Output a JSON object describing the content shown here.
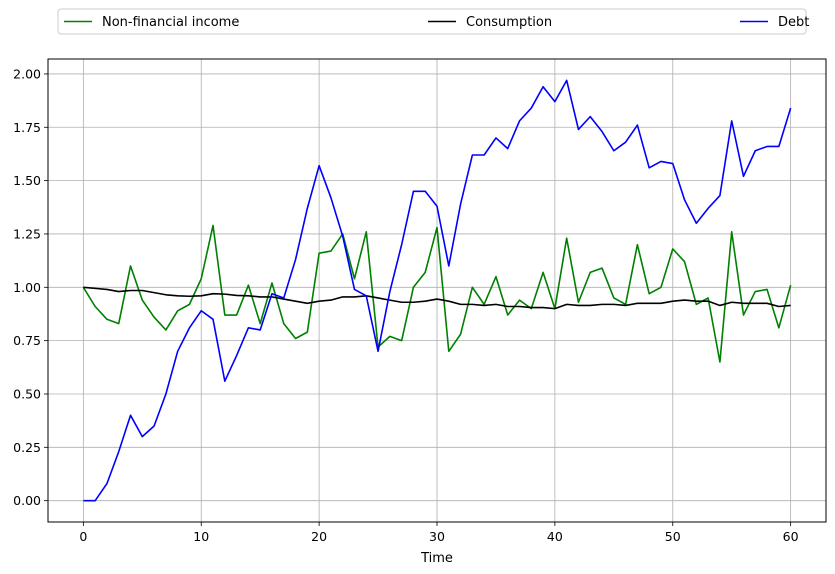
{
  "chart_data": {
    "type": "line",
    "title": "",
    "xlabel": "Time",
    "ylabel": "",
    "xlim": [
      -3,
      63
    ],
    "ylim": [
      -0.1,
      2.07
    ],
    "xticks": [
      0,
      10,
      20,
      30,
      40,
      50,
      60
    ],
    "yticks": [
      0.0,
      0.25,
      0.5,
      0.75,
      1.0,
      1.25,
      1.5,
      1.75,
      2.0
    ],
    "xtick_labels": [
      "0",
      "10",
      "20",
      "30",
      "40",
      "50",
      "60"
    ],
    "ytick_labels": [
      "0.00",
      "0.25",
      "0.50",
      "0.75",
      "1.00",
      "1.25",
      "1.50",
      "1.75",
      "2.00"
    ],
    "grid": true,
    "legend_position": "top, above plot",
    "x": [
      0,
      1,
      2,
      3,
      4,
      5,
      6,
      7,
      8,
      9,
      10,
      11,
      12,
      13,
      14,
      15,
      16,
      17,
      18,
      19,
      20,
      21,
      22,
      23,
      24,
      25,
      26,
      27,
      28,
      29,
      30,
      31,
      32,
      33,
      34,
      35,
      36,
      37,
      38,
      39,
      40,
      41,
      42,
      43,
      44,
      45,
      46,
      47,
      48,
      49,
      50,
      51,
      52,
      53,
      54,
      55,
      56,
      57,
      58,
      59,
      60
    ],
    "series": [
      {
        "name": "Non-financial income",
        "color": "#008000",
        "values": [
          1.0,
          0.91,
          0.85,
          0.83,
          1.1,
          0.94,
          0.86,
          0.8,
          0.89,
          0.92,
          1.04,
          1.29,
          0.87,
          0.87,
          1.01,
          0.83,
          1.02,
          0.83,
          0.76,
          0.79,
          1.16,
          1.17,
          1.25,
          1.04,
          1.26,
          0.72,
          0.77,
          0.75,
          1.0,
          1.07,
          1.28,
          0.7,
          0.78,
          1.0,
          0.92,
          1.05,
          0.87,
          0.94,
          0.9,
          1.07,
          0.9,
          1.23,
          0.93,
          1.07,
          1.09,
          0.95,
          0.92,
          1.2,
          0.97,
          1.0,
          1.18,
          1.12,
          0.92,
          0.95,
          0.65,
          1.26,
          0.87,
          0.98,
          0.99,
          0.81,
          1.01
        ]
      },
      {
        "name": "Consumption",
        "color": "#000000",
        "values": [
          1.0,
          0.995,
          0.99,
          0.98,
          0.985,
          0.985,
          0.975,
          0.965,
          0.96,
          0.958,
          0.96,
          0.97,
          0.968,
          0.962,
          0.96,
          0.955,
          0.955,
          0.945,
          0.935,
          0.925,
          0.935,
          0.94,
          0.955,
          0.955,
          0.96,
          0.95,
          0.94,
          0.93,
          0.93,
          0.935,
          0.945,
          0.935,
          0.92,
          0.92,
          0.915,
          0.92,
          0.91,
          0.91,
          0.905,
          0.905,
          0.9,
          0.92,
          0.915,
          0.915,
          0.92,
          0.92,
          0.915,
          0.925,
          0.925,
          0.925,
          0.935,
          0.94,
          0.935,
          0.935,
          0.915,
          0.93,
          0.925,
          0.925,
          0.925,
          0.91,
          0.915
        ]
      },
      {
        "name": "Debt",
        "color": "#0000ff",
        "values": [
          0.0,
          0.0,
          0.08,
          0.23,
          0.4,
          0.3,
          0.35,
          0.5,
          0.7,
          0.81,
          0.89,
          0.85,
          0.56,
          0.68,
          0.81,
          0.8,
          0.97,
          0.95,
          1.13,
          1.37,
          1.57,
          1.42,
          1.24,
          0.99,
          0.96,
          0.7,
          0.98,
          1.2,
          1.45,
          1.45,
          1.38,
          1.1,
          1.39,
          1.62,
          1.62,
          1.7,
          1.65,
          1.78,
          1.84,
          1.94,
          1.87,
          1.97,
          1.74,
          1.8,
          1.73,
          1.64,
          1.68,
          1.76,
          1.56,
          1.59,
          1.58,
          1.41,
          1.3,
          1.37,
          1.43,
          1.78,
          1.52,
          1.64,
          1.66,
          1.66,
          1.84
        ]
      }
    ]
  }
}
